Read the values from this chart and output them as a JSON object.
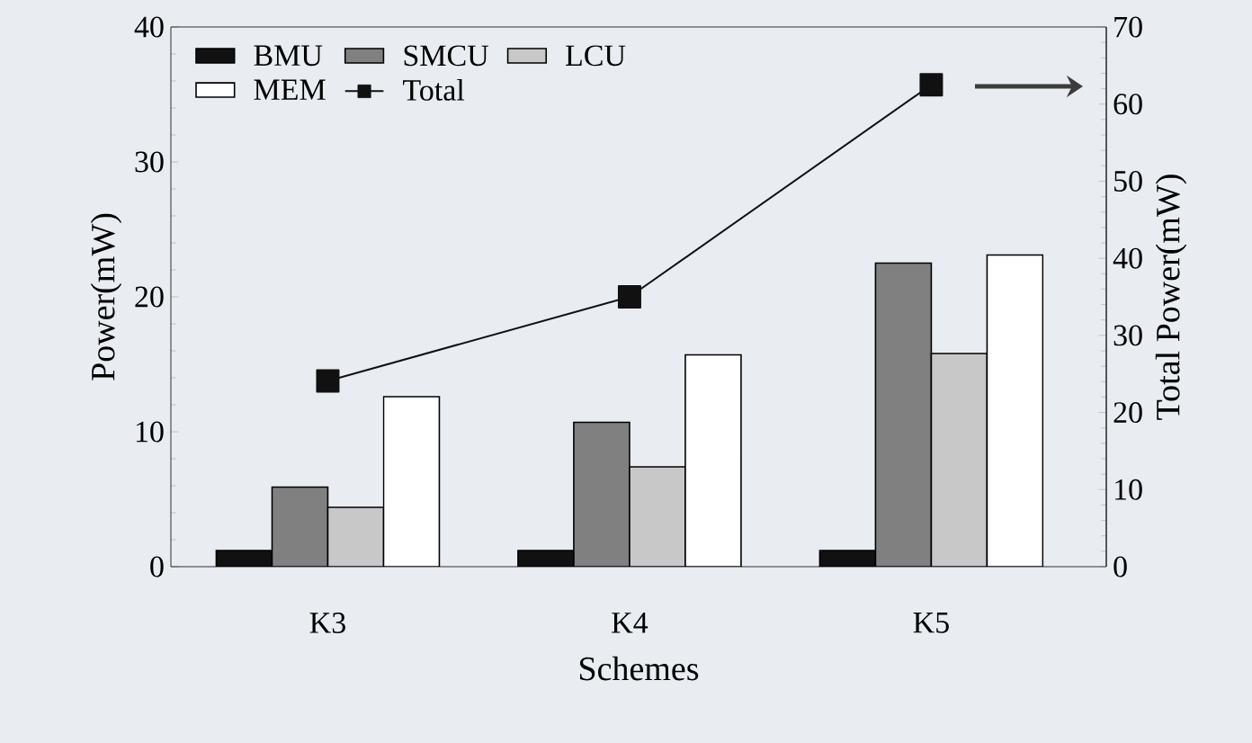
{
  "chart_data": {
    "type": "bar",
    "xlabel": "Schemes",
    "ylabel": "Power(mW)",
    "y2label": "Total Power(mW)",
    "categories": [
      "K3",
      "K4",
      "K5"
    ],
    "series": [
      {
        "name": "BMU",
        "color": "#111111",
        "values": [
          1.2,
          1.2,
          1.2
        ]
      },
      {
        "name": "SMCU",
        "color": "#808080",
        "values": [
          5.9,
          10.7,
          22.5
        ]
      },
      {
        "name": "LCU",
        "color": "#c8c8c8",
        "values": [
          4.4,
          7.4,
          15.8
        ]
      },
      {
        "name": "MEM",
        "color": "#ffffff",
        "values": [
          12.6,
          15.7,
          23.1
        ]
      },
      {
        "name": "Total",
        "type": "line",
        "axis": "y2",
        "color": "#111111",
        "marker": "square",
        "values": [
          24.1,
          35.0,
          62.5
        ]
      }
    ],
    "ylim": [
      0,
      40
    ],
    "yticks": [
      0,
      10,
      20,
      30,
      40
    ],
    "y2lim": [
      0,
      70
    ],
    "y2ticks": [
      0,
      10,
      20,
      30,
      40,
      50,
      60,
      70
    ],
    "legend": "top left",
    "grid": false
  }
}
